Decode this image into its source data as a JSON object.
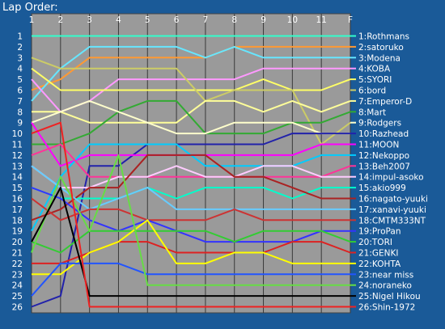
{
  "chart_data": {
    "type": "line",
    "title": "Lap Order:",
    "x_ticks": [
      "1",
      "2",
      "3",
      "4",
      "5",
      "6",
      "7",
      "8",
      "9",
      "10",
      "11",
      "F"
    ],
    "y_ticks": [
      1,
      2,
      3,
      4,
      5,
      6,
      7,
      8,
      9,
      10,
      11,
      12,
      13,
      14,
      15,
      16,
      17,
      18,
      19,
      20,
      21,
      22,
      23,
      24,
      25,
      26
    ],
    "ylim": [
      1,
      26
    ],
    "y_inverted": true,
    "grid": true,
    "legend_placement": "right",
    "series": [
      {
        "name": "1:Rothmans",
        "color": "#33ffcc",
        "values": [
          1,
          1,
          1,
          1,
          1,
          1,
          1,
          1,
          1,
          1,
          1,
          1
        ]
      },
      {
        "name": "2:satoruko",
        "color": "#ff9933",
        "values": [
          6,
          5,
          3,
          3,
          3,
          3,
          3,
          2,
          2,
          2,
          2,
          2
        ]
      },
      {
        "name": "3:Modena",
        "color": "#66e6ff",
        "values": [
          7,
          4,
          2,
          2,
          2,
          2,
          3,
          2,
          3,
          3,
          3,
          3
        ]
      },
      {
        "name": "4:KOBA",
        "color": "#ff99ff",
        "values": [
          5,
          8,
          7,
          5,
          5,
          5,
          5,
          5,
          4,
          4,
          4,
          4
        ]
      },
      {
        "name": "5:SYORI",
        "color": "#ffff66",
        "values": [
          4,
          6,
          6,
          6,
          6,
          6,
          6,
          6,
          5,
          6,
          6,
          5
        ]
      },
      {
        "name": "6:bord",
        "color": "#cccc66",
        "values": [
          3,
          4,
          4,
          4,
          4,
          4,
          7,
          6,
          6,
          6,
          11,
          9
        ]
      },
      {
        "name": "7:Emperor-D",
        "color": "#ffff99",
        "values": [
          8,
          8,
          9,
          9,
          9,
          9,
          7,
          7,
          8,
          7,
          8,
          7
        ]
      },
      {
        "name": "8:Mart",
        "color": "#33aa33",
        "values": [
          11,
          11,
          10,
          8,
          7,
          7,
          10,
          10,
          10,
          9,
          9,
          8
        ]
      },
      {
        "name": "9:Rodgers",
        "color": "#ffffcc",
        "values": [
          9,
          8,
          7,
          8,
          9,
          10,
          10,
          9,
          9,
          9,
          10,
          10
        ]
      },
      {
        "name": "10:Razhead",
        "color": "#2222aa",
        "values": [
          26,
          25,
          13,
          13,
          11,
          11,
          11,
          11,
          11,
          10,
          10,
          10
        ]
      },
      {
        "name": "11:MOON",
        "color": "#ff00ff",
        "values": [
          9,
          13,
          12,
          12,
          12,
          12,
          12,
          12,
          12,
          12,
          11,
          11
        ]
      },
      {
        "name": "12:Nekoppo",
        "color": "#00ccff",
        "values": [
          19,
          14,
          11,
          11,
          11,
          11,
          13,
          13,
          13,
          13,
          12,
          12
        ]
      },
      {
        "name": "13:Beh2007",
        "color": "#ff3399",
        "values": [
          12,
          11,
          14,
          14,
          14,
          14,
          14,
          14,
          14,
          14,
          14,
          13
        ]
      },
      {
        "name": "14:impul-asoko",
        "color": "#ffccff",
        "values": [
          13,
          15,
          15,
          14,
          14,
          13,
          14,
          14,
          13,
          13,
          14,
          14
        ]
      },
      {
        "name": "15:akio999",
        "color": "#00ffcc",
        "values": [
          15,
          16,
          16,
          16,
          15,
          16,
          15,
          15,
          15,
          16,
          15,
          15
        ]
      },
      {
        "name": "16:nagato-yuuki",
        "color": "#aa2222",
        "values": [
          18,
          17,
          15,
          15,
          12,
          12,
          12,
          14,
          14,
          15,
          16,
          16
        ]
      },
      {
        "name": "17:xanavi-yuuki",
        "color": "#66ccff",
        "values": [
          13,
          15,
          17,
          16,
          15,
          17,
          17,
          17,
          17,
          17,
          17,
          17
        ]
      },
      {
        "name": "18:CMTM333NT",
        "color": "#cc3333",
        "values": [
          16,
          18,
          17,
          17,
          18,
          18,
          18,
          17,
          18,
          18,
          18,
          18
        ]
      },
      {
        "name": "19:ProPan",
        "color": "#3333ff",
        "values": [
          15,
          16,
          18,
          19,
          18,
          19,
          20,
          20,
          20,
          20,
          19,
          19
        ]
      },
      {
        "name": "20:TORI",
        "color": "#33cc33",
        "values": [
          20,
          21,
          19,
          19,
          19,
          19,
          19,
          20,
          19,
          19,
          19,
          20
        ]
      },
      {
        "name": "21:GENKI",
        "color": "#dd2222",
        "values": [
          22,
          22,
          21,
          20,
          20,
          21,
          21,
          21,
          21,
          20,
          20,
          21
        ]
      },
      {
        "name": "22:KOHTA",
        "color": "#ffff00",
        "values": [
          23,
          23,
          21,
          20,
          18,
          22,
          22,
          21,
          21,
          22,
          22,
          22
        ]
      },
      {
        "name": "23:near miss",
        "color": "#2255ff",
        "values": [
          25,
          22,
          22,
          22,
          23,
          23,
          23,
          23,
          23,
          23,
          23,
          23
        ]
      },
      {
        "name": "24:noraneko",
        "color": "#66dd44",
        "values": [
          21,
          14,
          19,
          12,
          24,
          24,
          24,
          24,
          24,
          24,
          24,
          24
        ]
      },
      {
        "name": "25:Nigel Hikou",
        "color": "#000000",
        "values": [
          20,
          15,
          25,
          25,
          25,
          25,
          25,
          25,
          25,
          25,
          25,
          25
        ]
      },
      {
        "name": "26:Shin-1972",
        "color": "#ee2222",
        "values": [
          10,
          9,
          26,
          26,
          26,
          26,
          26,
          26,
          26,
          26,
          26,
          26
        ]
      }
    ]
  }
}
